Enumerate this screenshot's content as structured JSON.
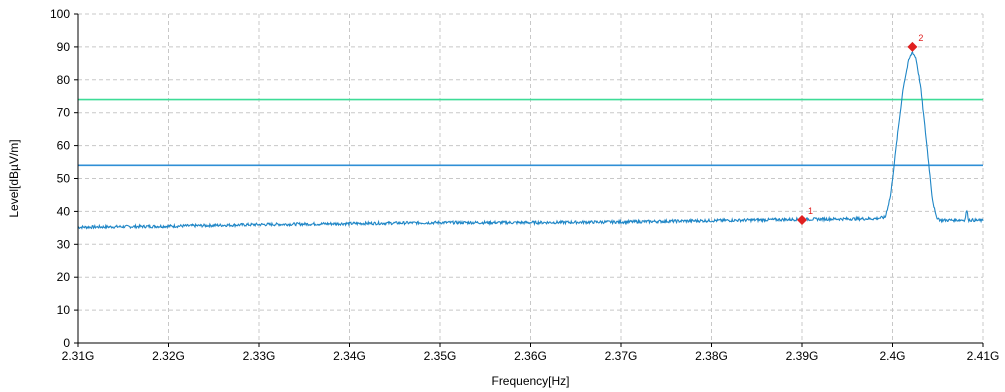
{
  "chart_data": {
    "type": "line",
    "title": "",
    "xlabel": "Frequency[Hz]",
    "ylabel": "Level[dBµV/m]",
    "x_unit": "Hz",
    "xlim": [
      2310000000,
      2410000000
    ],
    "ylim": [
      0,
      100
    ],
    "grid": true,
    "x_ticks": [
      {
        "value": 2310000000,
        "label": "2.31G"
      },
      {
        "value": 2320000000,
        "label": "2.32G"
      },
      {
        "value": 2330000000,
        "label": "2.33G"
      },
      {
        "value": 2340000000,
        "label": "2.34G"
      },
      {
        "value": 2350000000,
        "label": "2.35G"
      },
      {
        "value": 2360000000,
        "label": "2.36G"
      },
      {
        "value": 2370000000,
        "label": "2.37G"
      },
      {
        "value": 2380000000,
        "label": "2.38G"
      },
      {
        "value": 2390000000,
        "label": "2.39G"
      },
      {
        "value": 2400000000,
        "label": "2.4G"
      },
      {
        "value": 2410000000,
        "label": "2.41G"
      }
    ],
    "y_ticks": [
      {
        "value": 0,
        "label": "0"
      },
      {
        "value": 10,
        "label": "10"
      },
      {
        "value": 20,
        "label": "20"
      },
      {
        "value": 30,
        "label": "30"
      },
      {
        "value": 40,
        "label": "40"
      },
      {
        "value": 50,
        "label": "50"
      },
      {
        "value": 60,
        "label": "60"
      },
      {
        "value": 70,
        "label": "70"
      },
      {
        "value": 80,
        "label": "80"
      },
      {
        "value": 90,
        "label": "90"
      },
      {
        "value": 100,
        "label": "100"
      }
    ],
    "limit_lines": [
      {
        "value": 74,
        "color": "#3ddc97"
      },
      {
        "value": 54,
        "color": "#2f8fd6"
      }
    ],
    "series": [
      {
        "color": "#1f86c6",
        "points": [
          [
            2310000000,
            35.2
          ],
          [
            2320000000,
            35.5
          ],
          [
            2330000000,
            36.0
          ],
          [
            2340000000,
            36.3
          ],
          [
            2350000000,
            36.6
          ],
          [
            2360000000,
            36.6
          ],
          [
            2370000000,
            36.8
          ],
          [
            2380000000,
            37.2
          ],
          [
            2390000000,
            37.6
          ],
          [
            2398000000,
            37.8
          ],
          [
            2399200000,
            38.2
          ],
          [
            2399800000,
            45.0
          ],
          [
            2400500000,
            62.0
          ],
          [
            2401200000,
            78.0
          ],
          [
            2401800000,
            86.0
          ],
          [
            2402200000,
            88.5
          ],
          [
            2402600000,
            86.5
          ],
          [
            2403100000,
            78.0
          ],
          [
            2403800000,
            60.0
          ],
          [
            2404400000,
            44.0
          ],
          [
            2404800000,
            38.5
          ],
          [
            2405300000,
            37.3
          ],
          [
            2408000000,
            37.4
          ],
          [
            2408200000,
            40.5
          ],
          [
            2408400000,
            37.4
          ],
          [
            2410000000,
            37.2
          ]
        ]
      }
    ],
    "markers": [
      {
        "label": "1",
        "x": 2390000000,
        "y": 37.4,
        "color": "#e02020"
      },
      {
        "label": "2",
        "x": 2402200000,
        "y": 90.0,
        "color": "#e02020"
      }
    ]
  }
}
